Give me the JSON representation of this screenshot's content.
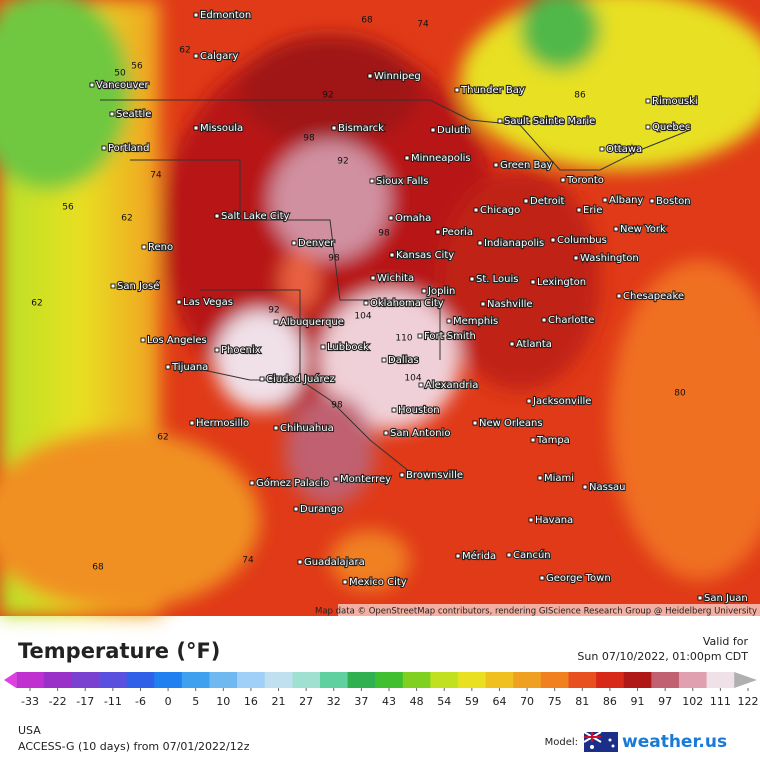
{
  "header": {
    "title": "Temperature (°F)",
    "valid_label": "Valid for",
    "valid_time": "Sun 07/10/2022, 01:00pm CDT"
  },
  "legend": {
    "ticks": [
      -33,
      -22,
      -17,
      -11,
      -6,
      0,
      5,
      10,
      16,
      21,
      27,
      32,
      37,
      43,
      48,
      54,
      59,
      64,
      70,
      75,
      81,
      86,
      91,
      97,
      102,
      111,
      122
    ],
    "colors": [
      "#e040e0",
      "#c030d0",
      "#9a30c8",
      "#7a40d0",
      "#5a50e0",
      "#3060e8",
      "#2080f0",
      "#40a0f0",
      "#70b8f0",
      "#a0d0f8",
      "#c0e0f0",
      "#a0e0d0",
      "#60d0a0",
      "#30b050",
      "#40c030",
      "#80d020",
      "#c0e020",
      "#e8e020",
      "#f0c020",
      "#f0a020",
      "#f08020",
      "#e85020",
      "#d82818",
      "#b01818",
      "#c06070",
      "#e0a0b0",
      "#f0e0e8",
      "#b0b0b0"
    ]
  },
  "map": {
    "cities": [
      "Edmonton",
      "Calgary",
      "Vancouver",
      "Seattle",
      "Portland",
      "Missoula",
      "Winnipeg",
      "Thunder Bay",
      "Bismarck",
      "Duluth",
      "Sault Sainte Marie",
      "Rimouski",
      "Quebec",
      "Ottawa",
      "Minneapolis",
      "Green Bay",
      "Toronto",
      "Sioux Falls",
      "Boston",
      "Albany",
      "Detroit",
      "Erie",
      "Chicago",
      "Omaha",
      "Salt Lake City",
      "Reno",
      "Denver",
      "Peoria",
      "Indianapolis",
      "Columbus",
      "New York",
      "Kansas City",
      "Washington",
      "San José",
      "Wichita",
      "St. Louis",
      "Lexington",
      "Joplin",
      "Las Vegas",
      "Chesapeake",
      "Nashville",
      "Oklahoma City",
      "Albuquerque",
      "Charlotte",
      "Memphis",
      "Los Angeles",
      "Fort Smith",
      "Phoenix",
      "Lubbock",
      "Atlanta",
      "Dallas",
      "Tijuana",
      "Ciudad Juárez",
      "Alexandria",
      "Jacksonville",
      "Houston",
      "Hermosillo",
      "Chihuahua",
      "New Orleans",
      "San Antonio",
      "Tampa",
      "Brownsville",
      "Miami",
      "Nassau",
      "Gómez Palacio",
      "Monterrey",
      "Durango",
      "Havana",
      "Guadalajara",
      "Mérida",
      "Cancún",
      "George Town",
      "Mexico City",
      "San Juan"
    ],
    "contour_labels": [
      56,
      56,
      62,
      62,
      62,
      62,
      50,
      74,
      74,
      74,
      68,
      68,
      98,
      98,
      98,
      98,
      92,
      92,
      92,
      104,
      104,
      86,
      80,
      110
    ],
    "attribution": "Map data © OpenStreetMap contributors, rendering GIScience Research Group @ Heidelberg University"
  },
  "footer": {
    "region": "USA",
    "model_run": "ACCESS-G (10 days) from 07/01/2022/12z",
    "model_label": "Model:",
    "brand": "weather.us"
  }
}
